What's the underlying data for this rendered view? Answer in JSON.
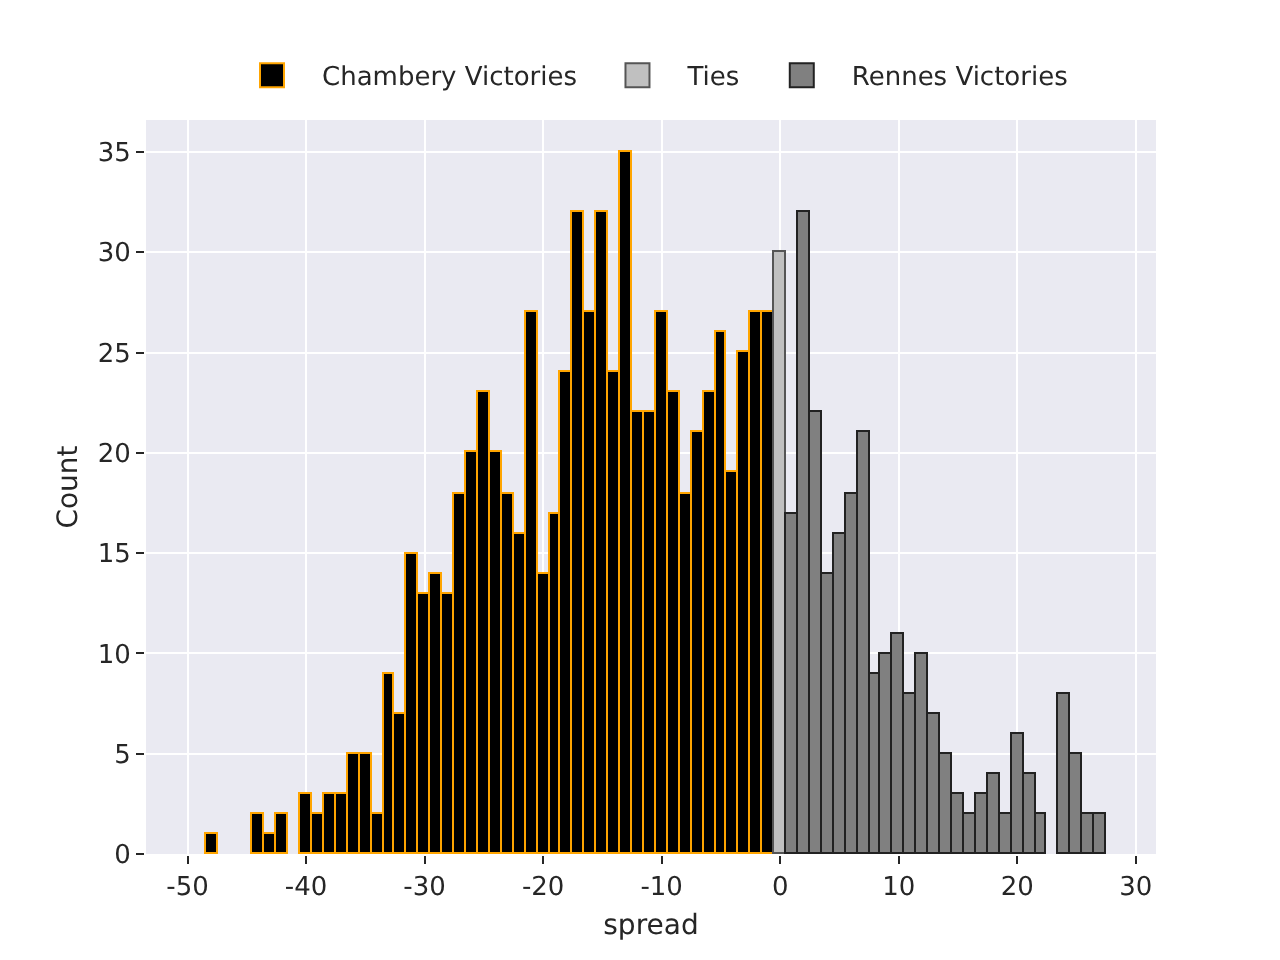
{
  "chart_data": {
    "type": "histogram",
    "xlabel": "spread",
    "ylabel": "Count",
    "bins": [
      -48.5,
      -47.5,
      -46.5,
      -45.5,
      -44.5,
      -43.5,
      -42.5,
      -41.5,
      -40.5,
      -39.5,
      -38.5,
      -37.5,
      -36.5,
      -35.5,
      -34.5,
      -33.5,
      -32.5,
      -31.5,
      -30.5,
      -29.5,
      -28.5,
      -27.5,
      -26.5,
      -25.5,
      -24.5,
      -23.5,
      -22.5,
      -21.5,
      -20.5,
      -19.5,
      -18.5,
      -17.5,
      -16.5,
      -15.5,
      -14.5,
      -13.5,
      -12.5,
      -11.5,
      -10.5,
      -9.5,
      -8.5,
      -7.5,
      -6.5,
      -5.5,
      -4.5,
      -3.5,
      -2.5,
      -1.5,
      -0.5,
      0.5,
      1.5,
      2.5,
      3.5,
      4.5,
      5.5,
      6.5,
      7.5,
      8.5,
      9.5,
      10.5,
      11.5,
      12.5,
      13.5,
      14.5,
      15.5,
      16.5,
      17.5,
      18.5,
      19.5,
      20.5,
      21.5,
      22.5,
      23.5,
      24.5,
      25.5,
      26.5,
      27.5
    ],
    "series": [
      {
        "name": "Chambery Victories",
        "color": "#000000",
        "values": [
          1,
          0,
          0,
          0,
          2,
          1,
          2,
          0,
          3,
          2,
          3,
          3,
          5,
          5,
          2,
          9,
          7,
          15,
          13,
          14,
          13,
          18,
          20,
          23,
          20,
          18,
          16,
          27,
          14,
          17,
          24,
          32,
          27,
          32,
          24,
          35,
          22,
          22,
          27,
          23,
          18,
          21,
          23,
          26,
          19,
          25,
          27,
          27,
          null,
          null,
          null,
          null,
          null,
          null,
          null,
          null,
          null,
          null,
          null,
          null,
          null,
          null,
          null,
          null,
          null,
          null,
          null,
          null,
          null,
          null,
          null,
          null,
          null,
          null,
          null,
          null
        ]
      },
      {
        "name": "Ties",
        "color": "#c0c0c0",
        "values": [
          null,
          null,
          null,
          null,
          null,
          null,
          null,
          null,
          null,
          null,
          null,
          null,
          null,
          null,
          null,
          null,
          null,
          null,
          null,
          null,
          null,
          null,
          null,
          null,
          null,
          null,
          null,
          null,
          null,
          null,
          null,
          null,
          null,
          null,
          null,
          null,
          null,
          null,
          null,
          null,
          null,
          null,
          null,
          null,
          null,
          null,
          null,
          null,
          30,
          null,
          null,
          null,
          null,
          null,
          null,
          null,
          null,
          null,
          null,
          null,
          null,
          null,
          null,
          null,
          null,
          null,
          null,
          null,
          null,
          null,
          null,
          null,
          null,
          null,
          null,
          null
        ]
      },
      {
        "name": "Rennes Victories",
        "color": "#808080",
        "values": [
          null,
          null,
          null,
          null,
          null,
          null,
          null,
          null,
          null,
          null,
          null,
          null,
          null,
          null,
          null,
          null,
          null,
          null,
          null,
          null,
          null,
          null,
          null,
          null,
          null,
          null,
          null,
          null,
          null,
          null,
          null,
          null,
          null,
          null,
          null,
          null,
          null,
          null,
          null,
          null,
          null,
          null,
          null,
          null,
          null,
          null,
          null,
          null,
          null,
          17,
          32,
          22,
          14,
          16,
          18,
          21,
          9,
          10,
          11,
          8,
          10,
          7,
          5,
          3,
          2,
          3,
          4,
          2,
          6,
          4,
          2,
          0,
          8,
          5,
          2,
          2
        ]
      }
    ],
    "xlim": [
      -53.5,
      31.7
    ],
    "xticks": [
      -50,
      -40,
      -30,
      -20,
      -10,
      0,
      10,
      20,
      30
    ],
    "ylim": [
      0,
      36.6
    ],
    "yticks": [
      0,
      5,
      10,
      15,
      20,
      25,
      30,
      35
    ],
    "grid": true,
    "legend": "top"
  }
}
